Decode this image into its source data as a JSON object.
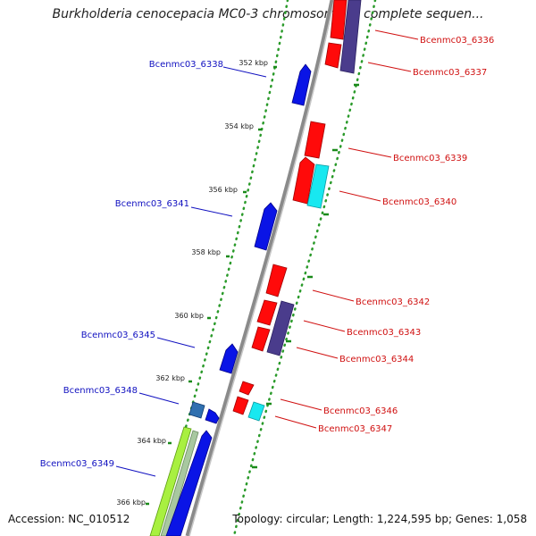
{
  "title": "Burkholderia cenocepacia MC0-3 chromosome 3, complete sequen...",
  "footer": {
    "accession": "Accession: NC_010512",
    "summary": "Topology: circular; Length: 1,224,595 bp; Genes: 1,058"
  },
  "colors": {
    "backbone": "#8a8a8a",
    "tick_dots": "#2a9a2a",
    "left_label": "#1010c0",
    "right_label": "#d01010",
    "gene_blue": "#0a14e6",
    "gene_red": "#ff0a0a",
    "gene_purple": "#4a3c8c",
    "gene_cyan": "#18e8f0",
    "gene_steel": "#3070b0",
    "gene_lime": "#a8f040",
    "gene_sage": "#a8c8a0"
  },
  "ticks": [
    "352 kbp",
    "354 kbp",
    "356 kbp",
    "358 kbp",
    "360 kbp",
    "362 kbp",
    "364 kbp",
    "366 kbp"
  ],
  "left_labels": [
    "Bcenmc03_6338",
    "Bcenmc03_6341",
    "Bcenmc03_6345",
    "Bcenmc03_6348",
    "Bcenmc03_6349"
  ],
  "right_labels": [
    "Bcenmc03_6336",
    "Bcenmc03_6337",
    "Bcenmc03_6339",
    "Bcenmc03_6340",
    "Bcenmc03_6342",
    "Bcenmc03_6343",
    "Bcenmc03_6344",
    "Bcenmc03_6346",
    "Bcenmc03_6347"
  ]
}
